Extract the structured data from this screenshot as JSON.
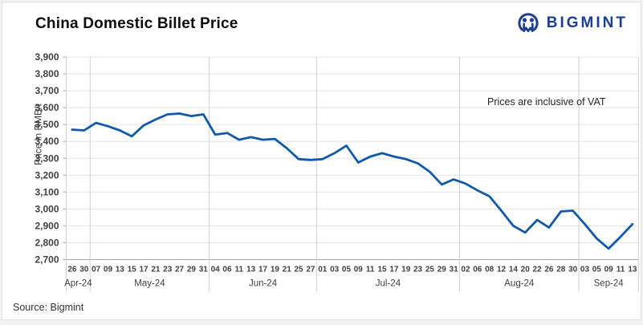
{
  "header": {
    "title": "China Domestic Billet Price",
    "logo_text": "BIGMINT"
  },
  "colors": {
    "line": "#1159ab",
    "logo": "#1d3e94",
    "gridline": "#e4e4e4",
    "separator": "#d0d0d0",
    "axis_line": "#a6a6a6",
    "tick_label": "#3f3f3f"
  },
  "footer": {
    "source": "Source: Bigmint"
  },
  "chart_data": {
    "type": "line",
    "title": "China Domestic Billet Price",
    "ylabel": "Price in RMB/t",
    "xlabel": "",
    "annotation": "Prices are inclusive of VAT",
    "legend": "none",
    "grid": "horizontal + month separators",
    "ylim": [
      2700,
      3900
    ],
    "y_tick_step": 100,
    "series_name": "China domestic billet price (RMB/t, incl. VAT)",
    "months": [
      {
        "label": "Apr-24",
        "days": [
          "26",
          "30"
        ],
        "values": [
          3470,
          3465
        ]
      },
      {
        "label": "May-24",
        "days": [
          "07",
          "09",
          "13",
          "15",
          "17",
          "21",
          "23",
          "27",
          "29",
          "31"
        ],
        "values": [
          3510,
          3490,
          3465,
          3430,
          3495,
          3530,
          3560,
          3565,
          3550,
          3560
        ]
      },
      {
        "label": "Jun-24",
        "days": [
          "04",
          "06",
          "11",
          "13",
          "17",
          "19",
          "21",
          "25",
          "27"
        ],
        "values": [
          3440,
          3450,
          3410,
          3425,
          3410,
          3415,
          3360,
          3295,
          3290
        ]
      },
      {
        "label": "Jul-24",
        "days": [
          "01",
          "03",
          "05",
          "09",
          "11",
          "15",
          "17",
          "19",
          "23",
          "25",
          "29",
          "31"
        ],
        "values": [
          3295,
          3330,
          3375,
          3275,
          3310,
          3330,
          3310,
          3295,
          3270,
          3220,
          3145,
          3175
        ]
      },
      {
        "label": "Aug-24",
        "days": [
          "02",
          "06",
          "08",
          "12",
          "14",
          "20",
          "22",
          "26",
          "28",
          "30"
        ],
        "values": [
          3150,
          3110,
          3075,
          2990,
          2900,
          2860,
          2935,
          2890,
          2985,
          2990
        ]
      },
      {
        "label": "Sep-24",
        "days": [
          "03",
          "05",
          "09",
          "11",
          "13"
        ],
        "values": [
          2910,
          2825,
          2765,
          2835,
          2910
        ]
      }
    ]
  }
}
